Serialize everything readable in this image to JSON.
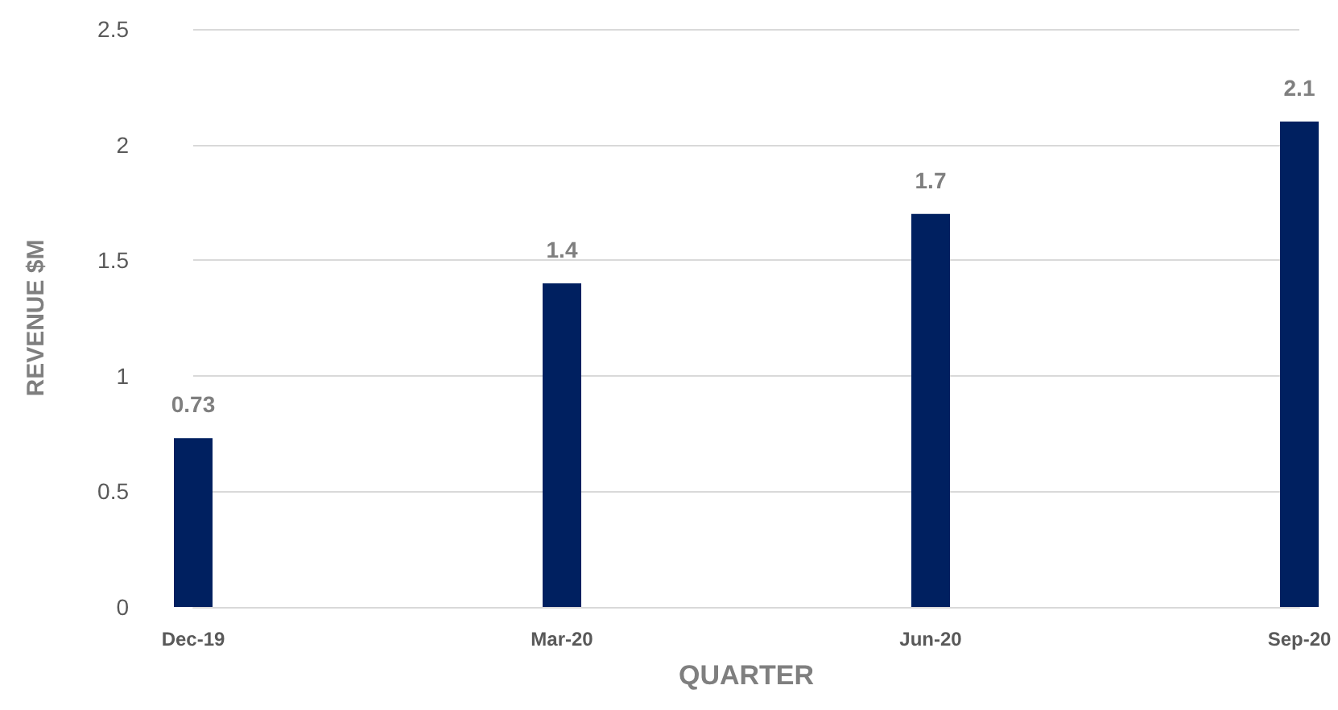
{
  "chart_data": {
    "type": "bar",
    "xlabel": "QUARTER",
    "ylabel": "REVENUE $M",
    "categories": [
      "Dec-19",
      "Mar-20",
      "Jun-20",
      "Sep-20"
    ],
    "values": [
      0.73,
      1.4,
      1.7,
      2.1
    ],
    "color": "#002060",
    "ylim": [
      0,
      2.5
    ],
    "yticks": [
      0,
      0.5,
      1,
      1.5,
      2,
      2.5
    ],
    "grid": "y",
    "data_labels": true
  }
}
